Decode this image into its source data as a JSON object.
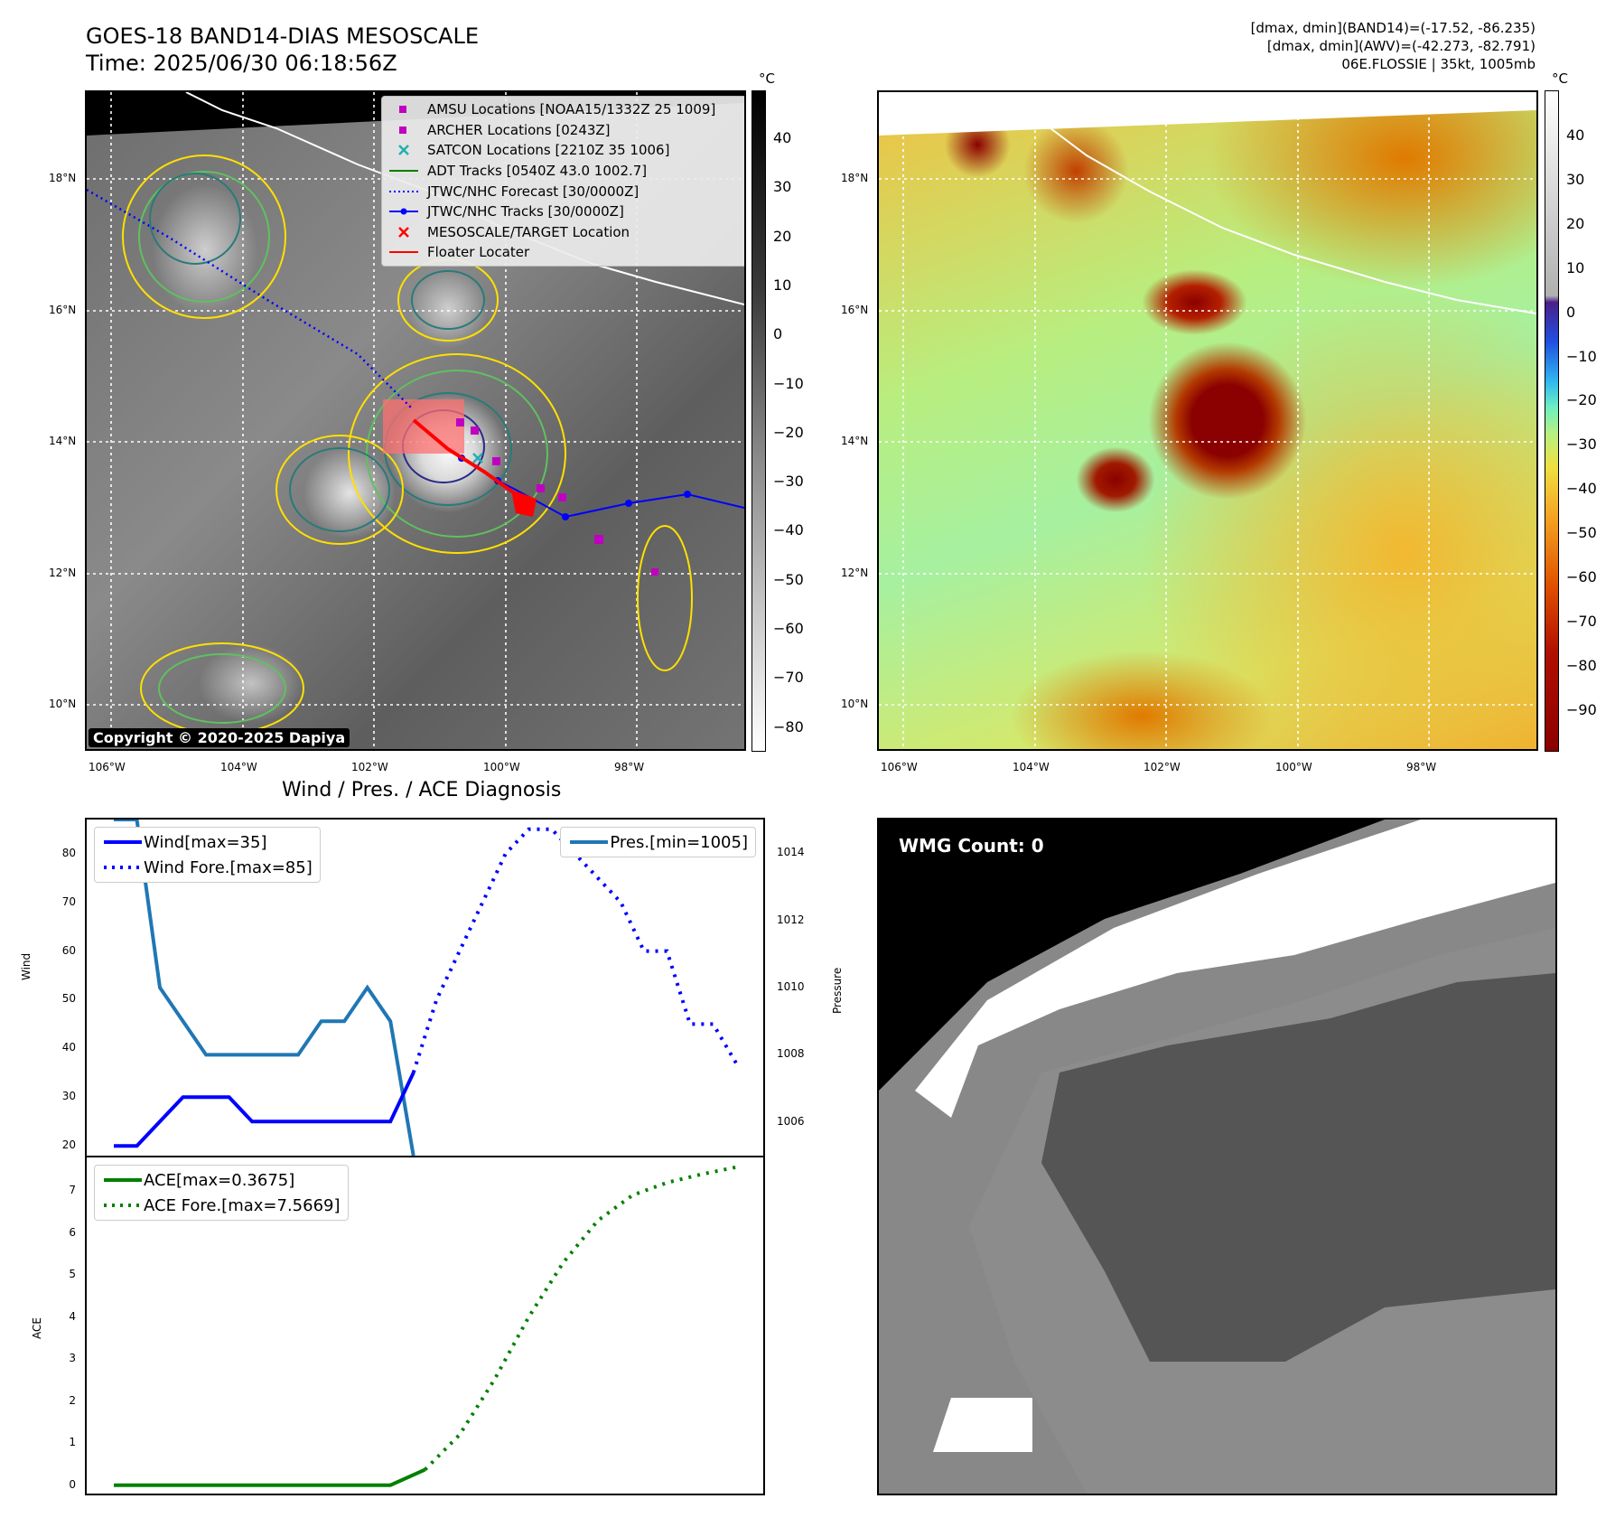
{
  "header": {
    "title_line1": "GOES-18 BAND14-DIAS MESOSCALE",
    "title_line2": "Time: 2025/06/30 06:18:56Z",
    "info_line1": "[dmax, dmin](BAND14)=(-17.52, -86.235)",
    "info_line2": "[dmax, dmin](AWV)=(-42.273, -82.791)",
    "info_line3": "06E.FLOSSIE | 35kt, 1005mb"
  },
  "colorbar_unit": "°C",
  "colorbar_gray_ticks": [
    "40",
    "30",
    "20",
    "10",
    "0",
    "−10",
    "−20",
    "−30",
    "−40",
    "−50",
    "−60",
    "−70",
    "−80"
  ],
  "colorbar_color_ticks": [
    "40",
    "30",
    "20",
    "10",
    "0",
    "−10",
    "−20",
    "−30",
    "−40",
    "−50",
    "−60",
    "−70",
    "−80",
    "−90"
  ],
  "map_lon_ticks": [
    "106°W",
    "104°W",
    "102°W",
    "100°W",
    "98°W"
  ],
  "map_lat_ticks": [
    "18°N",
    "16°N",
    "14°N",
    "12°N",
    "10°N"
  ],
  "map_legend": [
    {
      "label": "AMSU Locations [NOAA15/1332Z 25 1009]",
      "key": "square",
      "color": "#c000c0"
    },
    {
      "label": "ARCHER Locations [0243Z]",
      "key": "square",
      "color": "#c000c0"
    },
    {
      "label": "SATCON Locations [2210Z 35 1006]",
      "key": "cross",
      "color": "#20b0b0"
    },
    {
      "label": "ADT Tracks [0540Z 43.0 1002.7]",
      "key": "line",
      "color": "#008000"
    },
    {
      "label": "JTWC/NHC Forecast [30/0000Z]",
      "key": "dotted",
      "color": "#0000ff"
    },
    {
      "label": "JTWC/NHC Tracks [30/0000Z]",
      "key": "line-dot",
      "color": "#0000ff"
    },
    {
      "label": "MESOSCALE/TARGET Location",
      "key": "cross",
      "color": "#ff0000"
    },
    {
      "label": "Floater Locater",
      "key": "line",
      "color": "#ff0000"
    }
  ],
  "copyright": "Copyright © 2020-2025 Dapiya",
  "diag_title": "Wind / Pres. / ACE Diagnosis",
  "wmg_label": "WMG Count: 0",
  "colors": {
    "wind": "#0000ff",
    "pressure": "#1f77b4",
    "ace": "#008000",
    "amsu": "#c000c0"
  },
  "chart_data": [
    {
      "type": "line",
      "title": "Wind / Pres. / ACE Diagnosis",
      "ylabel": "Wind",
      "ylim": [
        18,
        87
      ],
      "yticks": [
        20,
        30,
        40,
        50,
        60,
        70,
        80
      ],
      "series": [
        {
          "name": "Wind[max=35]",
          "style": "solid",
          "x": [
            0,
            1,
            2,
            3,
            4,
            5,
            6,
            7,
            8,
            9,
            10,
            11,
            12,
            13
          ],
          "values": [
            20,
            20,
            25,
            30,
            30,
            30,
            25,
            25,
            25,
            25,
            25,
            25,
            25,
            35
          ]
        },
        {
          "name": "Wind Fore.[max=85]",
          "style": "dotted",
          "x": [
            13,
            14,
            15,
            16,
            17,
            18,
            19,
            20,
            21,
            22,
            23,
            24,
            25,
            26,
            27
          ],
          "values": [
            35,
            50,
            60,
            70,
            80,
            85,
            85,
            80,
            75,
            70,
            60,
            60,
            45,
            45,
            37
          ]
        }
      ],
      "right_axis": {
        "ylabel": "Pressure",
        "ylim": [
          1005,
          1015
        ],
        "yticks": [
          1006,
          1008,
          1010,
          1012,
          1014
        ],
        "series": [
          {
            "name": "Pres.[min=1005]",
            "style": "solid",
            "x": [
              0,
              1,
              2,
              3,
              4,
              5,
              6,
              7,
              8,
              9,
              10,
              11,
              12,
              13
            ],
            "values": [
              1015,
              1015,
              1010,
              1009,
              1008,
              1008,
              1008,
              1008,
              1008,
              1009,
              1009,
              1010,
              1009,
              1005
            ]
          }
        ]
      }
    },
    {
      "type": "line",
      "ylabel": "ACE",
      "ylim": [
        -0.2,
        7.8
      ],
      "yticks": [
        0,
        1,
        2,
        3,
        4,
        5,
        6,
        7
      ],
      "series": [
        {
          "name": "ACE[max=0.3675]",
          "style": "solid",
          "x": [
            0,
            12,
            13.5
          ],
          "values": [
            0,
            0,
            0.3675
          ]
        },
        {
          "name": "ACE Fore.[max=7.5669]",
          "style": "dotted",
          "x": [
            13.5,
            15,
            16.5,
            18,
            19.5,
            21,
            22.5,
            24,
            25.5,
            27
          ],
          "values": [
            0.3675,
            1.2,
            2.5,
            4.0,
            5.3,
            6.3,
            6.9,
            7.2,
            7.4,
            7.5669
          ]
        }
      ]
    }
  ]
}
